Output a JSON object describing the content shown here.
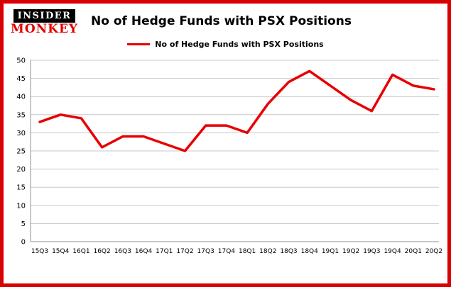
{
  "logo": {
    "top": "INSIDER",
    "bottom": "MONKEY"
  },
  "colors": {
    "frame_border": "#d80000",
    "line": "#e80000",
    "grid": "#c8c8c8",
    "axis": "#909090"
  },
  "chart_data": {
    "type": "line",
    "title": "No of Hedge Funds with PSX Positions",
    "legend": "No of Hedge Funds with PSX Positions",
    "categories": [
      "15Q3",
      "15Q4",
      "16Q1",
      "16Q2",
      "16Q3",
      "16Q4",
      "17Q1",
      "17Q2",
      "17Q3",
      "17Q4",
      "18Q1",
      "18Q2",
      "18Q3",
      "18Q4",
      "19Q1",
      "19Q2",
      "19Q3",
      "19Q4",
      "20Q1",
      "20Q2"
    ],
    "values": [
      33,
      35,
      34,
      26,
      29,
      29,
      27,
      25,
      32,
      32,
      30,
      38,
      44,
      47,
      43,
      39,
      36,
      46,
      43,
      42
    ],
    "xlabel": "",
    "ylabel": "",
    "ylim": [
      0,
      50
    ],
    "ytick_step": 5,
    "grid": true,
    "legend_position": "top"
  }
}
